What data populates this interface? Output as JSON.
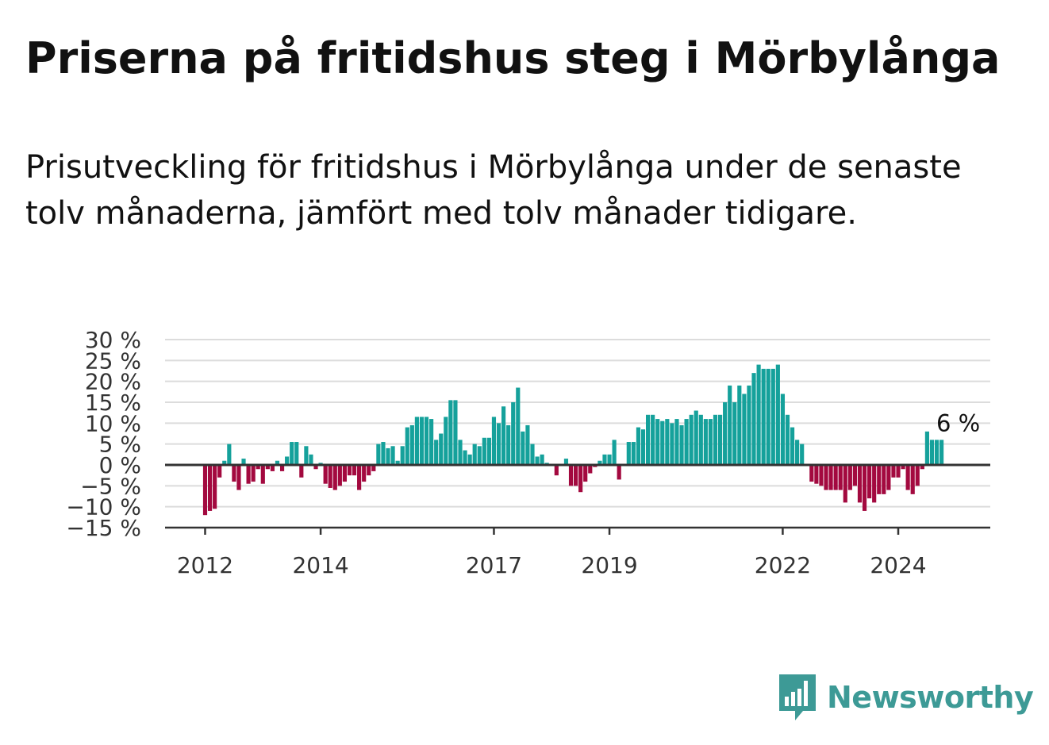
{
  "title": "Priserna på fritidshus steg i Mörbylånga",
  "subtitle": "Prisutveckling för fritidshus i Mörbylånga under de senaste tolv månaderna, jämfört med tolv månader tidigare.",
  "brand": {
    "name": "Newsworthy",
    "icon": "newsworthy-logo-icon",
    "color": "#3d9a96"
  },
  "chart_data": {
    "type": "bar",
    "ylim": [
      -15,
      30
    ],
    "yticks": [
      30,
      25,
      20,
      15,
      10,
      5,
      0,
      -5,
      -10,
      -15
    ],
    "ytick_labels": [
      "30 %",
      "25 %",
      "20 %",
      "15 %",
      "10 %",
      "5 %",
      "0 %",
      "−5 %",
      "−10 %",
      "−15 %"
    ],
    "xtick_labels": [
      "2012",
      "2014",
      "2017",
      "2019",
      "2022",
      "2024"
    ],
    "xtick_dates": [
      "2012-01",
      "2014-01",
      "2017-01",
      "2019-01",
      "2022-01",
      "2024-01"
    ],
    "colors": {
      "positive": "#15a19b",
      "negative": "#a3093f"
    },
    "grid": true,
    "start_month": "2012-01",
    "end_month": "2024-12",
    "annotation": {
      "text": "6 %",
      "month": "2024-10"
    },
    "values": [
      -12,
      -11,
      -10.5,
      -3,
      1,
      5,
      -4,
      -6,
      1.5,
      -4.5,
      -4,
      -1,
      -4.5,
      -1,
      -1.5,
      1,
      -1.5,
      2,
      5.5,
      5.5,
      -3,
      4.5,
      2.5,
      -1,
      0.5,
      -4.5,
      -5.5,
      -6,
      -5,
      -4,
      -2.5,
      -2.5,
      -6,
      -4,
      -2.5,
      -1.5,
      5,
      5.5,
      4,
      4.5,
      1,
      4.5,
      9,
      9.5,
      11.5,
      11.5,
      11.5,
      11,
      6,
      7.5,
      11.5,
      15.5,
      15.5,
      6,
      3.5,
      2.5,
      5,
      4.5,
      6.5,
      6.5,
      11.5,
      10,
      14,
      9.5,
      15,
      18.5,
      8,
      9.5,
      5,
      2,
      2.5,
      0.5,
      0,
      -2.5,
      0,
      1.5,
      -5,
      -5,
      -6.5,
      -4,
      -2,
      -0.5,
      1,
      2.5,
      2.5,
      6,
      -3.5,
      0,
      5.5,
      5.5,
      9,
      8.5,
      12,
      12,
      11,
      10.5,
      11,
      10,
      11,
      9.5,
      11,
      12,
      13,
      12,
      11,
      11,
      12,
      12,
      15,
      19,
      15,
      19,
      17,
      19,
      22,
      24,
      23,
      23,
      23,
      24,
      17,
      12,
      9,
      6,
      5,
      0,
      -4,
      -4.5,
      -5,
      -6,
      -6,
      -6,
      -6,
      -9,
      -6,
      -5,
      -9,
      -11,
      -8,
      -9,
      -7,
      -7,
      -6,
      -3,
      -3,
      -1,
      -6,
      -7,
      -5,
      -1,
      8,
      6,
      6,
      6
    ]
  }
}
